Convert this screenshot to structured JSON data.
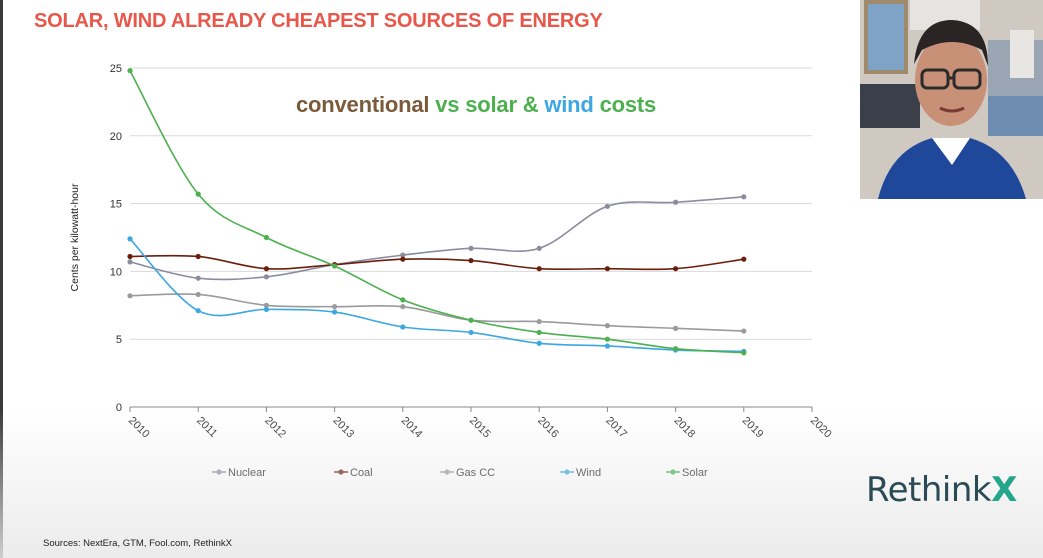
{
  "slide_title": "SOLAR, WIND ALREADY CHEAPEST SOURCES OF ENERGY",
  "subtitle": {
    "conventional": "conventional",
    "vs": "vs",
    "solar": "solar",
    "amp": "&",
    "wind": "wind",
    "costs": "costs"
  },
  "sources": "Sources: NextEra, GTM, Fool.com, RethinkX",
  "logo": {
    "text": "Rethink",
    "mark": "X"
  },
  "colors": {
    "Nuclear": "#8a8d9e",
    "Coal": "#6b1e0c",
    "Gas CC": "#9a9a9a",
    "Wind": "#3ca7e0",
    "Solar": "#4cb04f",
    "title": "#e8574a"
  },
  "chart_data": {
    "type": "line",
    "ylabel": "Cents per kilowatt-hour",
    "xlabel": "",
    "x_ticks": [
      "2010",
      "2011",
      "2012",
      "2013",
      "2014",
      "2015",
      "2016",
      "2017",
      "2018",
      "2019",
      "2020"
    ],
    "y_ticks": [
      "0",
      "5",
      "10",
      "15",
      "20",
      "25"
    ],
    "ylim": [
      0,
      25
    ],
    "xlim": [
      2010,
      2020
    ],
    "grid": "horizontal",
    "legend_position": "bottom",
    "series": [
      {
        "name": "Nuclear",
        "x": [
          2010,
          2011,
          2012,
          2013,
          2014,
          2015,
          2016,
          2017,
          2018,
          2019
        ],
        "values": [
          10.7,
          9.5,
          9.6,
          10.5,
          11.2,
          11.7,
          11.7,
          14.8,
          15.1,
          15.5
        ]
      },
      {
        "name": "Coal",
        "x": [
          2010,
          2011,
          2012,
          2013,
          2014,
          2015,
          2016,
          2017,
          2018,
          2019
        ],
        "values": [
          11.1,
          11.1,
          10.2,
          10.5,
          10.9,
          10.8,
          10.2,
          10.2,
          10.2,
          10.9
        ]
      },
      {
        "name": "Gas CC",
        "x": [
          2010,
          2011,
          2012,
          2013,
          2014,
          2015,
          2016,
          2017,
          2018,
          2019
        ],
        "values": [
          8.2,
          8.3,
          7.5,
          7.4,
          7.4,
          6.4,
          6.3,
          6.0,
          5.8,
          5.6
        ]
      },
      {
        "name": "Wind",
        "x": [
          2010,
          2011,
          2012,
          2013,
          2014,
          2015,
          2016,
          2017,
          2018,
          2019
        ],
        "values": [
          12.4,
          7.1,
          7.2,
          7.0,
          5.9,
          5.5,
          4.7,
          4.5,
          4.2,
          4.1
        ]
      },
      {
        "name": "Solar",
        "x": [
          2010,
          2011,
          2012,
          2013,
          2014,
          2015,
          2016,
          2017,
          2018,
          2019
        ],
        "values": [
          24.8,
          15.7,
          12.5,
          10.4,
          7.9,
          6.4,
          5.5,
          5.0,
          4.3,
          4.0
        ]
      }
    ]
  }
}
